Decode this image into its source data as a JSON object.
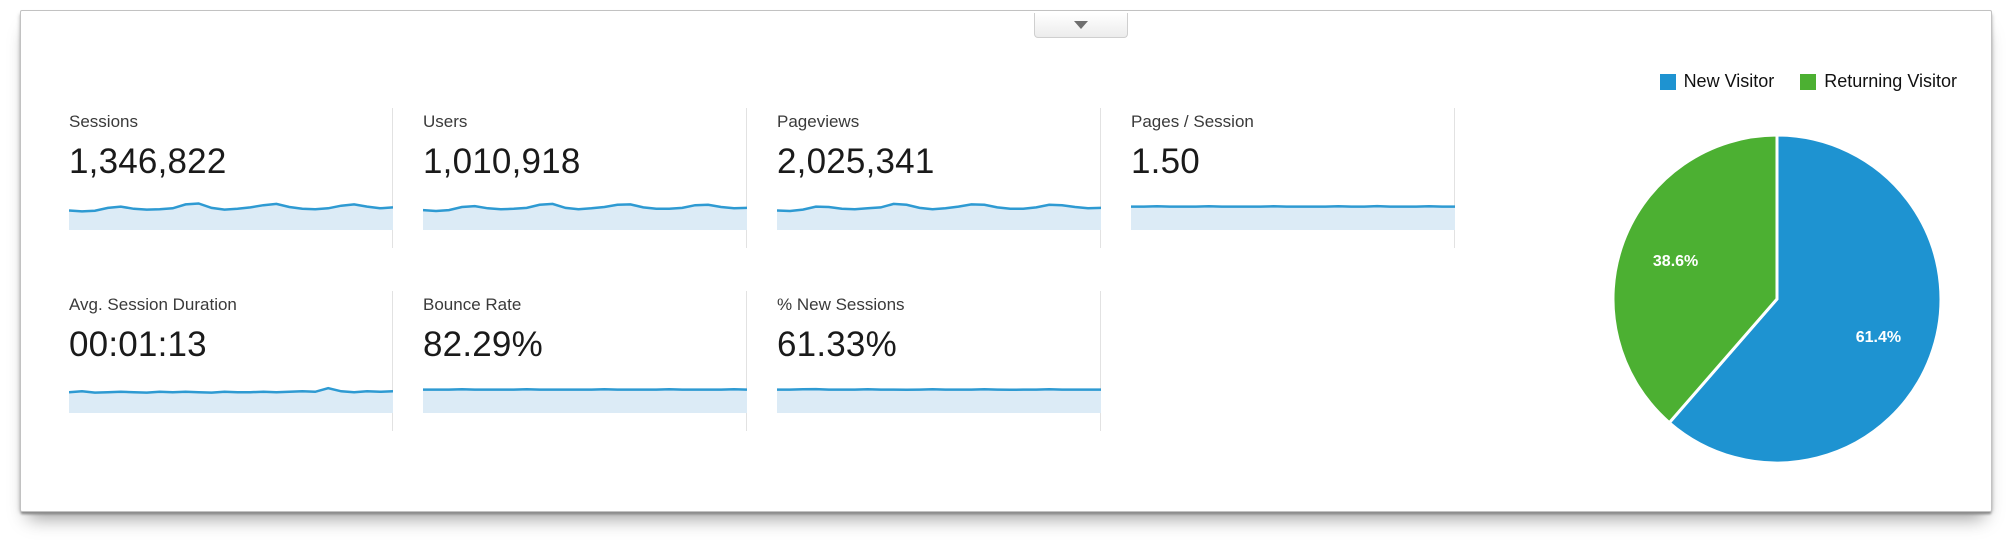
{
  "panel": {
    "collapse_button": {
      "icon": "chevron-down"
    }
  },
  "metrics": [
    {
      "label": "Sessions",
      "value": "1,346,822",
      "spark": [
        0.34,
        0.3,
        0.33,
        0.46,
        0.52,
        0.42,
        0.38,
        0.4,
        0.44,
        0.62,
        0.66,
        0.46,
        0.38,
        0.42,
        0.48,
        0.58,
        0.64,
        0.5,
        0.42,
        0.4,
        0.44,
        0.56,
        0.62,
        0.52,
        0.44,
        0.48
      ]
    },
    {
      "label": "Users",
      "value": "1,010,918",
      "spark": [
        0.36,
        0.32,
        0.36,
        0.5,
        0.54,
        0.44,
        0.4,
        0.42,
        0.46,
        0.6,
        0.64,
        0.46,
        0.4,
        0.44,
        0.5,
        0.6,
        0.62,
        0.48,
        0.42,
        0.42,
        0.46,
        0.58,
        0.6,
        0.5,
        0.44,
        0.46
      ]
    },
    {
      "label": "Pageviews",
      "value": "2,025,341",
      "spark": [
        0.34,
        0.32,
        0.38,
        0.52,
        0.5,
        0.42,
        0.4,
        0.44,
        0.48,
        0.64,
        0.6,
        0.46,
        0.4,
        0.44,
        0.52,
        0.62,
        0.6,
        0.48,
        0.42,
        0.42,
        0.48,
        0.6,
        0.58,
        0.5,
        0.44,
        0.46
      ]
    },
    {
      "label": "Pages / Session",
      "value": "1.50",
      "spark": [
        0.52,
        0.52,
        0.53,
        0.52,
        0.52,
        0.52,
        0.53,
        0.52,
        0.52,
        0.52,
        0.52,
        0.53,
        0.52,
        0.52,
        0.52,
        0.52,
        0.53,
        0.52,
        0.52,
        0.54,
        0.52,
        0.52,
        0.52,
        0.53,
        0.52,
        0.52
      ]
    },
    {
      "label": "Avg. Session Duration",
      "value": "00:01:13",
      "spark": [
        0.4,
        0.44,
        0.38,
        0.4,
        0.42,
        0.4,
        0.38,
        0.42,
        0.4,
        0.42,
        0.4,
        0.38,
        0.42,
        0.4,
        0.4,
        0.42,
        0.4,
        0.42,
        0.44,
        0.42,
        0.58,
        0.44,
        0.4,
        0.44,
        0.42,
        0.44
      ]
    },
    {
      "label": "Bounce Rate",
      "value": "82.29%",
      "spark": [
        0.52,
        0.52,
        0.52,
        0.53,
        0.52,
        0.52,
        0.52,
        0.52,
        0.53,
        0.52,
        0.52,
        0.52,
        0.52,
        0.52,
        0.53,
        0.52,
        0.52,
        0.52,
        0.52,
        0.53,
        0.52,
        0.52,
        0.52,
        0.52,
        0.53,
        0.52
      ]
    },
    {
      "label": "% New Sessions",
      "value": "61.33%",
      "spark": [
        0.52,
        0.52,
        0.53,
        0.54,
        0.52,
        0.52,
        0.52,
        0.53,
        0.52,
        0.52,
        0.51,
        0.52,
        0.53,
        0.52,
        0.52,
        0.52,
        0.53,
        0.52,
        0.51,
        0.52,
        0.52,
        0.53,
        0.52,
        0.52,
        0.52,
        0.52
      ]
    }
  ],
  "sparkline": {
    "line_color": "#2e9ad2",
    "fill_color": "#dcebf6"
  },
  "chart_data": {
    "type": "pie",
    "title": "",
    "labels": [
      "New Visitor",
      "Returning Visitor"
    ],
    "values": [
      61.4,
      38.6
    ],
    "value_labels": [
      "61.4%",
      "38.6%"
    ],
    "colors": [
      "#1e93d1",
      "#4cb032"
    ],
    "legend_position": "top",
    "start_angle_deg": 0,
    "direction": "clockwise"
  }
}
